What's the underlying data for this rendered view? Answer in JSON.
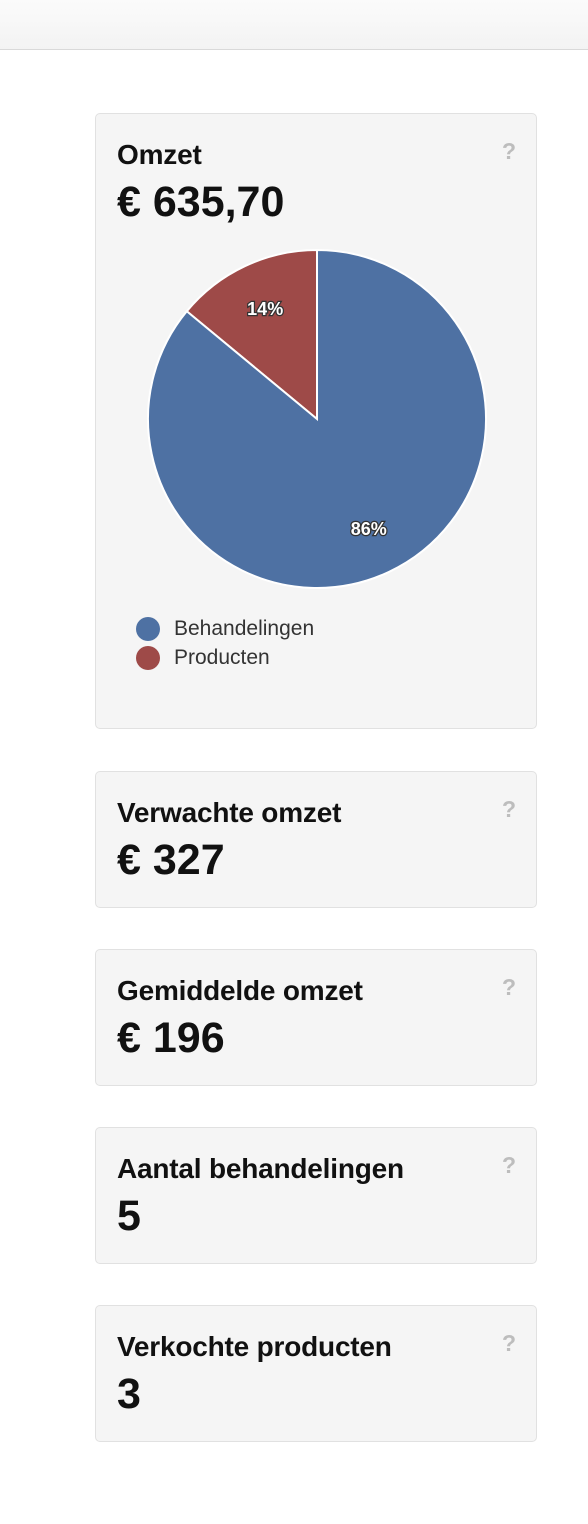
{
  "cards": {
    "omzet": {
      "title": "Omzet",
      "value": "€ 635,70",
      "help": "?"
    },
    "verwachte": {
      "title": "Verwachte omzet",
      "value": "€ 327",
      "help": "?"
    },
    "gemiddelde": {
      "title": "Gemiddelde omzet",
      "value": "€ 196",
      "help": "?"
    },
    "behandelingen": {
      "title": "Aantal behandelingen",
      "value": "5",
      "help": "?"
    },
    "producten": {
      "title": "Verkochte producten",
      "value": "3",
      "help": "?"
    }
  },
  "chart_data": {
    "type": "pie",
    "categories": [
      "Behandelingen",
      "Producten"
    ],
    "values": [
      86,
      14
    ],
    "labels": [
      "86%",
      "14%"
    ],
    "colors": [
      "#4e71a3",
      "#9e4a48"
    ],
    "legend_position": "bottom-left"
  },
  "legend": {
    "items": [
      {
        "label": "Behandelingen",
        "color": "#4e71a3"
      },
      {
        "label": "Producten",
        "color": "#9e4a48"
      }
    ]
  }
}
